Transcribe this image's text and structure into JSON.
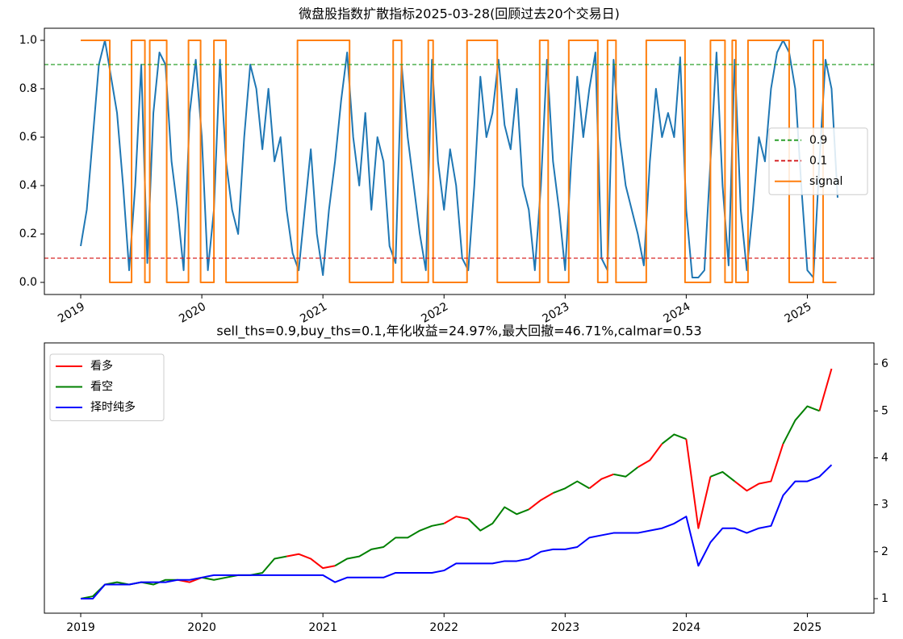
{
  "chart_data": [
    {
      "type": "line",
      "title": "微盘股指数扩散指标2025-03-28(回顾过去20个交易日)",
      "x": [
        2019.0,
        2019.05,
        2019.1,
        2019.15,
        2019.2,
        2019.25,
        2019.3,
        2019.35,
        2019.4,
        2019.45,
        2019.5,
        2019.55,
        2019.6,
        2019.65,
        2019.7,
        2019.75,
        2019.8,
        2019.85,
        2019.9,
        2019.95,
        2020.0,
        2020.05,
        2020.1,
        2020.15,
        2020.2,
        2020.25,
        2020.3,
        2020.35,
        2020.4,
        2020.45,
        2020.5,
        2020.55,
        2020.6,
        2020.65,
        2020.7,
        2020.75,
        2020.8,
        2020.85,
        2020.9,
        2020.95,
        2021.0,
        2021.05,
        2021.1,
        2021.15,
        2021.2,
        2021.25,
        2021.3,
        2021.35,
        2021.4,
        2021.45,
        2021.5,
        2021.55,
        2021.6,
        2021.65,
        2021.7,
        2021.75,
        2021.8,
        2021.85,
        2021.9,
        2021.95,
        2022.0,
        2022.05,
        2022.1,
        2022.15,
        2022.2,
        2022.25,
        2022.3,
        2022.35,
        2022.4,
        2022.45,
        2022.5,
        2022.55,
        2022.6,
        2022.65,
        2022.7,
        2022.75,
        2022.8,
        2022.85,
        2022.9,
        2022.95,
        2023.0,
        2023.05,
        2023.1,
        2023.15,
        2023.2,
        2023.25,
        2023.3,
        2023.35,
        2023.4,
        2023.45,
        2023.5,
        2023.55,
        2023.6,
        2023.65,
        2023.7,
        2023.75,
        2023.8,
        2023.85,
        2023.9,
        2023.95,
        2024.0,
        2024.05,
        2024.1,
        2024.15,
        2024.2,
        2024.25,
        2024.3,
        2024.35,
        2024.4,
        2024.45,
        2024.5,
        2024.55,
        2024.6,
        2024.65,
        2024.7,
        2024.75,
        2024.8,
        2024.85,
        2024.9,
        2024.95,
        2025.0,
        2025.05,
        2025.1,
        2025.15,
        2025.2,
        2025.25
      ],
      "series": [
        {
          "color": "#1f77b4",
          "values": [
            0.15,
            0.3,
            0.6,
            0.9,
            1.0,
            0.85,
            0.7,
            0.4,
            0.05,
            0.4,
            0.9,
            0.08,
            0.7,
            0.95,
            0.9,
            0.5,
            0.3,
            0.05,
            0.7,
            0.92,
            0.6,
            0.05,
            0.3,
            0.92,
            0.5,
            0.3,
            0.2,
            0.6,
            0.9,
            0.8,
            0.55,
            0.8,
            0.5,
            0.6,
            0.3,
            0.12,
            0.05,
            0.3,
            0.55,
            0.2,
            0.03,
            0.3,
            0.5,
            0.75,
            0.95,
            0.6,
            0.4,
            0.7,
            0.3,
            0.6,
            0.5,
            0.15,
            0.08,
            0.9,
            0.6,
            0.4,
            0.2,
            0.05,
            0.92,
            0.5,
            0.3,
            0.55,
            0.4,
            0.1,
            0.05,
            0.4,
            0.85,
            0.6,
            0.7,
            0.92,
            0.65,
            0.55,
            0.8,
            0.4,
            0.3,
            0.05,
            0.4,
            0.92,
            0.5,
            0.3,
            0.05,
            0.5,
            0.85,
            0.6,
            0.8,
            0.95,
            0.1,
            0.05,
            0.92,
            0.6,
            0.4,
            0.3,
            0.2,
            0.07,
            0.5,
            0.8,
            0.6,
            0.7,
            0.6,
            0.93,
            0.3,
            0.02,
            0.02,
            0.05,
            0.5,
            0.95,
            0.4,
            0.07,
            0.92,
            0.3,
            0.05,
            0.3,
            0.6,
            0.5,
            0.8,
            0.95,
            1.0,
            0.95,
            0.8,
            0.4,
            0.05,
            0.02,
            0.5,
            0.92,
            0.8,
            0.35
          ]
        },
        {
          "name": "signal",
          "color": "#ff7f0e",
          "step": "post",
          "x": [
            2019.0,
            2019.24,
            2019.42,
            2019.53,
            2019.57,
            2019.71,
            2019.89,
            2019.99,
            2020.1,
            2020.2,
            2020.79,
            2021.22,
            2021.58,
            2021.65,
            2021.87,
            2021.91,
            2022.19,
            2022.44,
            2022.79,
            2022.86,
            2023.03,
            2023.27,
            2023.35,
            2023.42,
            2023.67,
            2023.99,
            2024.2,
            2024.32,
            2024.38,
            2024.41,
            2024.51,
            2024.85,
            2025.05,
            2025.13,
            2025.24
          ],
          "values": [
            1,
            0,
            1,
            0,
            1,
            0,
            1,
            0,
            1,
            0,
            1,
            0,
            1,
            0,
            1,
            0,
            1,
            0,
            1,
            0,
            1,
            0,
            1,
            0,
            1,
            0,
            1,
            0,
            1,
            0,
            1,
            0,
            1,
            0,
            0
          ]
        }
      ],
      "hlines": [
        {
          "name": "0.9",
          "value": 0.9,
          "color": "#2ca02c"
        },
        {
          "name": "0.1",
          "value": 0.1,
          "color": "#d62728"
        }
      ],
      "xlim": [
        2018.7,
        2025.55
      ],
      "xticks": [
        2019,
        2020,
        2021,
        2022,
        2023,
        2024,
        2025
      ],
      "xtick_rotation": 30,
      "ylim": [
        -0.05,
        1.05
      ],
      "yticks": [
        {
          "value": 0,
          "label": "0.0"
        },
        0.2,
        0.4,
        0.6,
        0.8,
        {
          "value": 1,
          "label": "1.0"
        }
      ],
      "legend": "center right"
    },
    {
      "type": "line",
      "title": "sell_ths=0.9,buy_ths=0.1,年化收益=24.97%,最大回撤=46.71%,calmar=0.53",
      "x": [
        2019.0,
        2019.1,
        2019.2,
        2019.3,
        2019.4,
        2019.5,
        2019.6,
        2019.7,
        2019.8,
        2019.9,
        2020.0,
        2020.1,
        2020.2,
        2020.3,
        2020.4,
        2020.5,
        2020.6,
        2020.7,
        2020.8,
        2020.9,
        2021.0,
        2021.1,
        2021.2,
        2021.3,
        2021.4,
        2021.5,
        2021.6,
        2021.7,
        2021.8,
        2021.9,
        2022.0,
        2022.1,
        2022.2,
        2022.3,
        2022.4,
        2022.5,
        2022.6,
        2022.7,
        2022.8,
        2022.9,
        2023.0,
        2023.1,
        2023.2,
        2023.3,
        2023.4,
        2023.5,
        2023.6,
        2023.7,
        2023.8,
        2023.9,
        2024.0,
        2024.1,
        2024.2,
        2024.3,
        2024.4,
        2024.5,
        2024.6,
        2024.7,
        2024.8,
        2024.9,
        2025.0,
        2025.1,
        2025.2
      ],
      "series": [
        {
          "name": "看多",
          "color": "#ff0000",
          "values": [
            null,
            null,
            null,
            null,
            null,
            null,
            null,
            null,
            1.4,
            1.35,
            1.45,
            null,
            null,
            null,
            null,
            null,
            null,
            1.9,
            1.95,
            1.85,
            1.65,
            1.7,
            null,
            null,
            null,
            null,
            null,
            null,
            null,
            null,
            2.6,
            2.75,
            2.7,
            null,
            null,
            null,
            null,
            2.9,
            3.1,
            3.25,
            null,
            null,
            3.35,
            3.55,
            3.65,
            null,
            3.8,
            3.95,
            4.3,
            null,
            4.4,
            2.5,
            3.6,
            null,
            3.5,
            3.3,
            3.45,
            3.5,
            4.3,
            null,
            null,
            5.0,
            5.9
          ]
        },
        {
          "name": "看空",
          "color": "#008000",
          "values": [
            1.0,
            1.05,
            1.3,
            1.35,
            1.3,
            1.35,
            1.3,
            1.4,
            1.4,
            null,
            1.45,
            1.4,
            1.45,
            1.5,
            1.5,
            1.55,
            1.85,
            1.9,
            null,
            null,
            null,
            1.7,
            1.85,
            1.9,
            2.05,
            2.1,
            2.3,
            2.3,
            2.45,
            2.55,
            2.6,
            null,
            2.7,
            2.45,
            2.6,
            2.95,
            2.8,
            2.9,
            null,
            3.25,
            3.35,
            3.5,
            3.35,
            null,
            3.65,
            3.6,
            3.8,
            null,
            4.3,
            4.5,
            4.4,
            null,
            3.6,
            3.7,
            3.5,
            null,
            null,
            null,
            4.3,
            4.8,
            5.1,
            5.0,
            null
          ]
        },
        {
          "name": "择时纯多",
          "color": "#0000ff",
          "values": [
            1.0,
            1.0,
            1.3,
            1.3,
            1.3,
            1.35,
            1.35,
            1.35,
            1.4,
            1.4,
            1.45,
            1.5,
            1.5,
            1.5,
            1.5,
            1.5,
            1.5,
            1.5,
            1.5,
            1.5,
            1.5,
            1.35,
            1.45,
            1.45,
            1.45,
            1.45,
            1.55,
            1.55,
            1.55,
            1.55,
            1.6,
            1.75,
            1.75,
            1.75,
            1.75,
            1.8,
            1.8,
            1.85,
            2.0,
            2.05,
            2.05,
            2.1,
            2.3,
            2.35,
            2.4,
            2.4,
            2.4,
            2.45,
            2.5,
            2.6,
            2.75,
            1.7,
            2.2,
            2.5,
            2.5,
            2.4,
            2.5,
            2.55,
            3.2,
            3.5,
            3.5,
            3.6,
            3.85
          ]
        }
      ],
      "xlim": [
        2018.7,
        2025.55
      ],
      "xticks": [
        2019,
        2020,
        2021,
        2022,
        2023,
        2024,
        2025
      ],
      "ylim": [
        0.69,
        6.45
      ],
      "yticks": [
        1,
        2,
        3,
        4,
        5,
        6
      ],
      "y_axis_position": "right",
      "legend": "upper left"
    }
  ]
}
